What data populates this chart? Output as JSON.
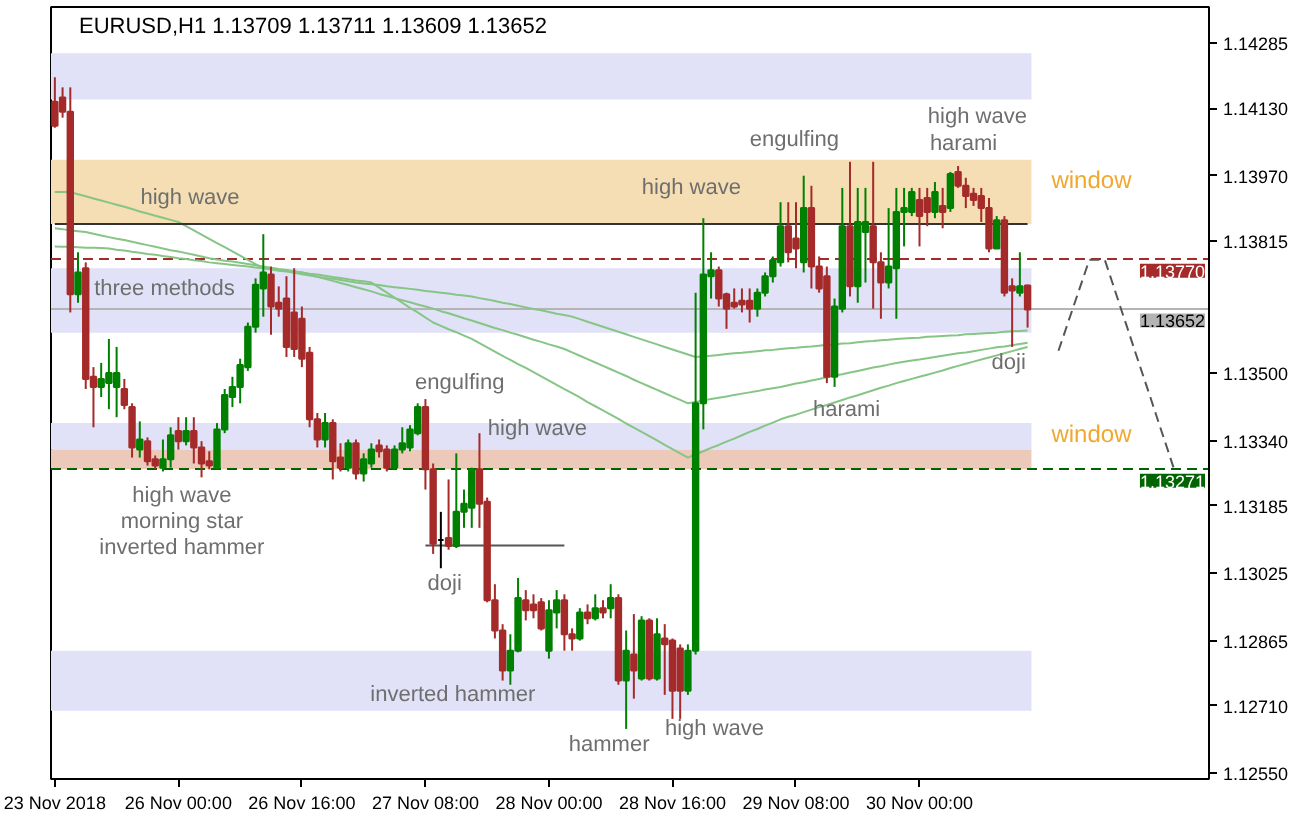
{
  "chart_data": {
    "type": "candlestick",
    "title": "EURUSD,H1 1.13709 1.13711 1.13609 1.13652",
    "categories": [
      "23 Nov 2018",
      null,
      null,
      null,
      null,
      null,
      null,
      null,
      null,
      null,
      null,
      null,
      null,
      null,
      null,
      null,
      "26 Nov 00:00",
      null,
      null,
      null,
      null,
      null,
      null,
      null,
      null,
      null,
      null,
      null,
      null,
      null,
      null,
      null,
      "26 Nov 16:00",
      null,
      null,
      null,
      null,
      null,
      null,
      null,
      null,
      null,
      null,
      null,
      null,
      null,
      null,
      null,
      "27 Nov 08:00",
      null,
      null,
      null,
      null,
      null,
      null,
      null,
      null,
      null,
      null,
      null,
      null,
      null,
      null,
      null,
      "28 Nov 00:00",
      null,
      null,
      null,
      null,
      null,
      null,
      null,
      null,
      null,
      null,
      null,
      null,
      null,
      null,
      null,
      "28 Nov 16:00",
      null,
      null,
      null,
      null,
      null,
      null,
      null,
      null,
      null,
      null,
      null,
      null,
      null,
      null,
      null,
      "29 Nov 08:00",
      null,
      null,
      null,
      null,
      null,
      null,
      null,
      null,
      null,
      null,
      null,
      null,
      null,
      null,
      null,
      "30 Nov 00:00",
      null,
      null,
      null,
      null,
      null,
      null,
      null,
      null,
      null,
      null,
      null,
      null,
      null,
      null,
      null,
      null,
      null,
      null,
      null,
      null,
      null,
      null,
      null,
      null,
      null,
      null,
      null,
      null,
      null,
      null,
      null,
      null,
      null,
      null,
      null,
      null,
      null
    ],
    "ohlc": [
      [
        1.14146,
        1.14204,
        1.14084,
        1.14089
      ],
      [
        1.14156,
        1.1418,
        1.14108,
        1.14122
      ],
      [
        1.14122,
        1.1418,
        1.13645,
        1.13688
      ],
      [
        1.13688,
        1.13788,
        1.13668,
        1.1374
      ],
      [
        1.1375,
        1.13764,
        1.13463,
        1.13487
      ],
      [
        1.13492,
        1.13515,
        1.13372,
        1.13468
      ],
      [
        1.13468,
        1.13525,
        1.13444,
        1.13487
      ],
      [
        1.13477,
        1.13582,
        1.13415,
        1.13501
      ],
      [
        1.13468,
        1.13563,
        1.13396,
        1.13501
      ],
      [
        1.13463,
        1.13487,
        1.13415,
        1.13425
      ],
      [
        1.1342,
        1.13429,
        1.133,
        1.13324
      ],
      [
        1.13319,
        1.13386,
        1.133,
        1.13343
      ],
      [
        1.13339,
        1.13348,
        1.13281,
        1.13291
      ],
      [
        1.13296,
        1.13305,
        1.13272,
        1.13281
      ],
      [
        1.13276,
        1.13343,
        1.13267,
        1.13296
      ],
      [
        1.13296,
        1.13372,
        1.13276,
        1.13353
      ],
      [
        1.13363,
        1.13396,
        1.13319,
        1.13339
      ],
      [
        1.13339,
        1.13396,
        1.13329,
        1.13363
      ],
      [
        1.13363,
        1.13396,
        1.13286,
        1.13324
      ],
      [
        1.13324,
        1.13339,
        1.13253,
        1.13286
      ],
      [
        1.13291,
        1.13315,
        1.13272,
        1.13281
      ],
      [
        1.13276,
        1.13382,
        1.13272,
        1.13367
      ],
      [
        1.13367,
        1.13463,
        1.13358,
        1.13449
      ],
      [
        1.13444,
        1.13492,
        1.1342,
        1.13468
      ],
      [
        1.13468,
        1.13535,
        1.13429,
        1.1352
      ],
      [
        1.13515,
        1.13621,
        1.13506,
        1.13611
      ],
      [
        1.13611,
        1.13726,
        1.13597,
        1.13711
      ],
      [
        1.13702,
        1.13831,
        1.13635,
        1.1374
      ],
      [
        1.13735,
        1.13754,
        1.13592,
        1.13659
      ],
      [
        1.13668,
        1.13707,
        1.13635,
        1.13654
      ],
      [
        1.13678,
        1.13731,
        1.13539,
        1.13563
      ],
      [
        1.13645,
        1.1375,
        1.13539,
        1.13558
      ],
      [
        1.1363,
        1.13659,
        1.13515,
        1.13535
      ],
      [
        1.13549,
        1.13563,
        1.13372,
        1.13391
      ],
      [
        1.13391,
        1.13406,
        1.13324,
        1.13343
      ],
      [
        1.13343,
        1.13406,
        1.13324,
        1.13382
      ],
      [
        1.13382,
        1.13391,
        1.13248,
        1.13291
      ],
      [
        1.133,
        1.13334,
        1.13267,
        1.13276
      ],
      [
        1.13276,
        1.13343,
        1.13267,
        1.13334
      ],
      [
        1.13334,
        1.13343,
        1.13248,
        1.13262
      ],
      [
        1.13262,
        1.1331,
        1.13243,
        1.13296
      ],
      [
        1.13286,
        1.13334,
        1.13276,
        1.13319
      ],
      [
        1.13329,
        1.13343,
        1.133,
        1.13315
      ],
      [
        1.13319,
        1.13329,
        1.13267,
        1.13276
      ],
      [
        1.13276,
        1.13329,
        1.13272,
        1.13319
      ],
      [
        1.13319,
        1.13372,
        1.1331,
        1.13334
      ],
      [
        1.13324,
        1.13377,
        1.13315,
        1.13367
      ],
      [
        1.13358,
        1.13429,
        1.13353,
        1.1342
      ],
      [
        1.1342,
        1.13439,
        1.13224,
        1.13272
      ],
      [
        1.13272,
        1.13286,
        1.13071,
        1.13095
      ],
      [
        1.13104,
        1.13171,
        1.13037,
        1.13104
      ],
      [
        1.13109,
        1.13248,
        1.13081,
        1.1309
      ],
      [
        1.1309,
        1.1331,
        1.13085,
        1.13171
      ],
      [
        1.13171,
        1.13224,
        1.13133,
        1.1319
      ],
      [
        1.13181,
        1.13276,
        1.13133,
        1.13272
      ],
      [
        1.13272,
        1.13358,
        1.13133,
        1.1319
      ],
      [
        1.13195,
        1.13205,
        1.12956,
        1.12961
      ],
      [
        1.12961,
        1.12999,
        1.1287,
        1.12889
      ],
      [
        1.12889,
        1.12904,
        1.1277,
        1.12794
      ],
      [
        1.12794,
        1.1288,
        1.1276,
        1.12841
      ],
      [
        1.12841,
        1.13014,
        1.12837,
        1.12966
      ],
      [
        1.12961,
        1.12985,
        1.12913,
        1.12937
      ],
      [
        1.12951,
        1.12975,
        1.12918,
        1.12937
      ],
      [
        1.12956,
        1.12966,
        1.12889,
        1.12894
      ],
      [
        1.12841,
        1.12961,
        1.12822,
        1.12937
      ],
      [
        1.12932,
        1.12985,
        1.12894,
        1.12961
      ],
      [
        1.12961,
        1.12975,
        1.12841,
        1.1288
      ],
      [
        1.1288,
        1.12894,
        1.12841,
        1.1287
      ],
      [
        1.1287,
        1.12942,
        1.12865,
        1.12932
      ],
      [
        1.12932,
        1.12951,
        1.12904,
        1.12918
      ],
      [
        1.12918,
        1.12975,
        1.12913,
        1.12942
      ],
      [
        1.12942,
        1.12961,
        1.12918,
        1.12932
      ],
      [
        1.12942,
        1.12999,
        1.12918,
        1.12966
      ],
      [
        1.12966,
        1.12975,
        1.1276,
        1.1277
      ],
      [
        1.1277,
        1.12889,
        1.12655,
        1.12841
      ],
      [
        1.12832,
        1.12928,
        1.12727,
        1.12794
      ],
      [
        1.12775,
        1.12923,
        1.1277,
        1.12913
      ],
      [
        1.12913,
        1.12918,
        1.1277,
        1.12775
      ],
      [
        1.12775,
        1.12918,
        1.1277,
        1.1288
      ],
      [
        1.1287,
        1.12904,
        1.12736,
        1.12856
      ],
      [
        1.12865,
        1.1287,
        1.12679,
        1.12746
      ],
      [
        1.12846,
        1.12856,
        1.12679,
        1.12746
      ],
      [
        1.12746,
        1.12856,
        1.12736,
        1.12841
      ],
      [
        1.12841,
        1.13692,
        1.12832,
        1.13429
      ],
      [
        1.13429,
        1.13869,
        1.13367,
        1.13735
      ],
      [
        1.13731,
        1.13788,
        1.13678,
        1.13745
      ],
      [
        1.13745,
        1.13754,
        1.13659,
        1.13678
      ],
      [
        1.13688,
        1.13692,
        1.13606,
        1.13654
      ],
      [
        1.13668,
        1.13702,
        1.13654,
        1.13659
      ],
      [
        1.13673,
        1.13702,
        1.13645,
        1.13664
      ],
      [
        1.13673,
        1.13702,
        1.13621,
        1.13654
      ],
      [
        1.13654,
        1.13702,
        1.13635,
        1.13692
      ],
      [
        1.13692,
        1.1374,
        1.13683,
        1.13731
      ],
      [
        1.13731,
        1.13778,
        1.13716,
        1.13769
      ],
      [
        1.13764,
        1.13907,
        1.13754,
        1.1385
      ],
      [
        1.1385,
        1.13907,
        1.13764,
        1.13788
      ],
      [
        1.13821,
        1.13907,
        1.1375,
        1.13797
      ],
      [
        1.13764,
        1.1397,
        1.1374,
        1.13893
      ],
      [
        1.13893,
        1.13946,
        1.13702,
        1.13754
      ],
      [
        1.13754,
        1.13778,
        1.13692,
        1.13702
      ],
      [
        1.13731,
        1.13754,
        1.13477,
        1.13492
      ],
      [
        1.13492,
        1.13678,
        1.13468,
        1.13659
      ],
      [
        1.13654,
        1.13941,
        1.13645,
        1.1385
      ],
      [
        1.1385,
        1.14003,
        1.13683,
        1.13707
      ],
      [
        1.13707,
        1.13941,
        1.13668,
        1.1386
      ],
      [
        1.13836,
        1.13941,
        1.13716,
        1.1386
      ],
      [
        1.1385,
        1.14003,
        1.13654,
        1.13764
      ],
      [
        1.13764,
        1.13788,
        1.1363,
        1.13716
      ],
      [
        1.13716,
        1.13893,
        1.13702,
        1.13754
      ],
      [
        1.1375,
        1.13941,
        1.1363,
        1.13884
      ],
      [
        1.13884,
        1.13941,
        1.13802,
        1.13893
      ],
      [
        1.13884,
        1.13941,
        1.13874,
        1.13931
      ],
      [
        1.13912,
        1.13941,
        1.13802,
        1.13874
      ],
      [
        1.13917,
        1.13941,
        1.1385,
        1.13884
      ],
      [
        1.13884,
        1.13955,
        1.13869,
        1.13931
      ],
      [
        1.13898,
        1.13941,
        1.13845,
        1.13884
      ],
      [
        1.13893,
        1.13979,
        1.13884,
        1.13974
      ],
      [
        1.13979,
        1.13993,
        1.13941,
        1.13946
      ],
      [
        1.13946,
        1.13965,
        1.13893,
        1.13922
      ],
      [
        1.13927,
        1.13941,
        1.13898,
        1.13912
      ],
      [
        1.13922,
        1.13941,
        1.1386,
        1.13893
      ],
      [
        1.13893,
        1.13917,
        1.13788,
        1.13797
      ],
      [
        1.13797,
        1.13874,
        1.13797,
        1.13864
      ],
      [
        1.13864,
        1.13874,
        1.13683,
        1.13692
      ],
      [
        1.13707,
        1.13726,
        1.13563,
        1.13697
      ],
      [
        1.13692,
        1.13788,
        1.13683,
        1.13707
      ],
      [
        1.13709,
        1.13711,
        1.13609,
        1.13652
      ],
      null,
      null,
      null,
      null,
      null,
      null,
      null,
      null,
      null,
      null,
      null,
      null,
      null,
      null,
      null,
      null,
      null,
      null,
      null,
      null,
      null,
      null,
      null
    ],
    "colors": [
      "#a52a2a",
      "#a52a2a",
      "#a52a2a",
      "#008000",
      "#a52a2a",
      "#a52a2a",
      "#008000",
      "#008000",
      "#008000",
      "#a52a2a",
      "#a52a2a",
      "#008000",
      "#a52a2a",
      "#a52a2a",
      "#008000",
      "#008000",
      "#a52a2a",
      "#008000",
      "#a52a2a",
      "#a52a2a",
      "#a52a2a",
      "#008000",
      "#008000",
      "#008000",
      "#008000",
      "#008000",
      "#008000",
      "#008000",
      "#a52a2a",
      "#a52a2a",
      "#a52a2a",
      "#a52a2a",
      "#a52a2a",
      "#a52a2a",
      "#a52a2a",
      "#008000",
      "#a52a2a",
      "#a52a2a",
      "#008000",
      "#a52a2a",
      "#008000",
      "#008000",
      "#a52a2a",
      "#a52a2a",
      "#008000",
      "#008000",
      "#008000",
      "#008000",
      "#a52a2a",
      "#a52a2a",
      "#000000",
      "#a52a2a",
      "#008000",
      "#008000",
      "#008000",
      "#a52a2a",
      "#a52a2a",
      "#a52a2a",
      "#a52a2a",
      "#008000",
      "#008000",
      "#a52a2a",
      "#a52a2a",
      "#a52a2a",
      "#008000",
      "#008000",
      "#a52a2a",
      "#a52a2a",
      "#008000",
      "#a52a2a",
      "#008000",
      "#a52a2a",
      "#008000",
      "#a52a2a",
      "#008000",
      "#a52a2a",
      "#008000",
      "#a52a2a",
      "#008000",
      "#a52a2a",
      "#a52a2a",
      "#a52a2a",
      "#008000",
      "#008000",
      "#008000",
      "#008000",
      "#a52a2a",
      "#a52a2a",
      "#a52a2a",
      "#a52a2a",
      "#a52a2a",
      "#008000",
      "#008000",
      "#008000",
      "#008000",
      "#a52a2a",
      "#a52a2a",
      "#008000",
      "#a52a2a",
      "#a52a2a",
      "#a52a2a",
      "#008000",
      "#008000",
      "#a52a2a",
      "#008000",
      "#008000",
      "#a52a2a",
      "#a52a2a",
      "#008000",
      "#008000",
      "#008000",
      "#008000",
      "#a52a2a",
      "#a52a2a",
      "#008000",
      "#a52a2a",
      "#008000",
      "#a52a2a",
      "#a52a2a",
      "#a52a2a",
      "#a52a2a",
      "#a52a2a",
      "#008000",
      "#a52a2a",
      "#a52a2a",
      "#008000",
      "#a52a2a",
      null,
      null,
      null,
      null,
      null,
      null,
      null,
      null,
      null,
      null,
      null,
      null,
      null,
      null,
      null,
      null,
      null,
      null,
      null,
      null,
      null,
      null,
      null
    ],
    "series": [
      {
        "type": "line",
        "color": "#86c586",
        "values": [
          1.13931,
          1.13931,
          1.13931,
          1.13926,
          1.13921,
          1.13916,
          1.13911,
          1.13906,
          1.13901,
          1.13896,
          1.13891,
          1.13885,
          1.1388,
          1.13875,
          1.1387,
          1.13865,
          1.1386,
          1.1385,
          1.1384,
          1.1383,
          1.1382,
          1.1381,
          1.138,
          1.1379,
          1.1378,
          1.1377,
          1.1376,
          1.1375,
          1.13747,
          1.13744,
          1.13742,
          1.13739,
          1.13736,
          1.13733,
          1.1373,
          1.13727,
          1.13725,
          1.13722,
          1.13719,
          1.13716,
          1.13714,
          1.13712,
          1.1371,
          1.13707,
          1.13705,
          1.13703,
          1.13701,
          1.13699,
          1.13696,
          1.13694,
          1.13692,
          1.1369,
          1.13687,
          1.13685,
          1.13683,
          1.13679,
          1.13676,
          1.13672,
          1.13668,
          1.13665,
          1.13661,
          1.13657,
          1.13653,
          1.1365,
          1.13646,
          1.13642,
          1.13639,
          1.13635,
          1.13629,
          1.13623,
          1.13617,
          1.13611,
          1.13605,
          1.13599,
          1.13593,
          1.13587,
          1.13581,
          1.13575,
          1.13569,
          1.13563,
          1.13557,
          1.13551,
          1.13545,
          1.13539,
          1.13541,
          1.13542,
          1.13544,
          1.13546,
          1.13548,
          1.13549,
          1.13551,
          1.13553,
          1.13555,
          1.13556,
          1.13558,
          1.1356,
          1.13561,
          1.13563,
          1.13564,
          1.13566,
          1.13568,
          1.13569,
          1.13571,
          1.13572,
          1.13574,
          1.13576,
          1.13577,
          1.13579,
          1.1358,
          1.13582,
          1.13583,
          1.13584,
          1.13585,
          1.13587,
          1.13588,
          1.13589,
          1.1359,
          1.13591,
          1.13593,
          1.13594,
          1.13595,
          1.13596,
          1.13597,
          1.13599,
          1.136,
          1.13601,
          1.13602,
          null,
          null,
          null,
          null,
          null,
          null,
          null,
          null,
          null,
          null,
          null,
          null,
          null,
          null,
          null,
          null,
          null,
          null,
          null,
          null,
          null,
          null,
          null
        ]
      },
      {
        "type": "line",
        "color": "#86c586",
        "values": [
          1.13845,
          1.13843,
          1.1384,
          1.13838,
          1.13836,
          1.13832,
          1.13828,
          1.13824,
          1.1382,
          1.13817,
          1.13813,
          1.13809,
          1.13805,
          1.13801,
          1.13797,
          1.13793,
          1.1379,
          1.13786,
          1.13782,
          1.13778,
          1.13774,
          1.13771,
          1.13768,
          1.13766,
          1.13763,
          1.1376,
          1.13757,
          1.13754,
          1.13751,
          1.13748,
          1.13746,
          1.13743,
          1.1374,
          1.13735,
          1.1373,
          1.13725,
          1.1372,
          1.13715,
          1.1371,
          1.13705,
          1.137,
          1.13695,
          1.13689,
          1.13684,
          1.13679,
          1.13674,
          1.13669,
          1.13664,
          1.13659,
          1.13654,
          1.13648,
          1.13643,
          1.13637,
          1.13631,
          1.13626,
          1.1362,
          1.13614,
          1.13608,
          1.13603,
          1.13597,
          1.13592,
          1.13586,
          1.1358,
          1.13575,
          1.13569,
          1.13564,
          1.13558,
          1.1355,
          1.13542,
          1.13534,
          1.13526,
          1.13518,
          1.1351,
          1.13502,
          1.13494,
          1.13485,
          1.13477,
          1.13469,
          1.13461,
          1.13453,
          1.13445,
          1.13437,
          1.13429,
          1.13432,
          1.13436,
          1.13439,
          1.13442,
          1.13445,
          1.13449,
          1.13452,
          1.13455,
          1.13458,
          1.13462,
          1.13465,
          1.13468,
          1.13472,
          1.13476,
          1.13479,
          1.13483,
          1.13487,
          1.13491,
          1.13495,
          1.13498,
          1.13502,
          1.13506,
          1.1351,
          1.13514,
          1.13517,
          1.13521,
          1.13525,
          1.13528,
          1.13531,
          1.13533,
          1.13536,
          1.13539,
          1.13542,
          1.13545,
          1.13548,
          1.1355,
          1.13553,
          1.13556,
          1.13559,
          1.13562,
          1.13564,
          1.13567,
          1.1357,
          1.13573,
          null,
          null,
          null,
          null,
          null,
          null,
          null,
          null,
          null,
          null,
          null,
          null,
          null,
          null,
          null,
          null,
          null,
          null,
          null,
          null,
          null,
          null,
          null
        ]
      },
      {
        "type": "line",
        "color": "#86c586",
        "values": [
          1.13802,
          1.13801,
          1.13801,
          1.138,
          1.13799,
          1.13799,
          1.13798,
          1.13797,
          1.13794,
          1.13792,
          1.13789,
          1.13787,
          1.13784,
          1.13782,
          1.13779,
          1.13777,
          1.13774,
          1.13772,
          1.13769,
          1.13767,
          1.13764,
          1.13762,
          1.1376,
          1.13758,
          1.13756,
          1.13754,
          1.13752,
          1.1375,
          1.13748,
          1.13746,
          1.13744,
          1.13742,
          1.1374,
          1.13737,
          1.13735,
          1.13732,
          1.13729,
          1.13727,
          1.13724,
          1.13721,
          1.13719,
          1.13716,
          1.13704,
          1.13692,
          1.1368,
          1.13668,
          1.13656,
          1.13645,
          1.13633,
          1.13621,
          1.13613,
          1.13605,
          1.13598,
          1.1359,
          1.13582,
          1.13572,
          1.13562,
          1.13552,
          1.13542,
          1.13532,
          1.13522,
          1.13513,
          1.13503,
          1.13493,
          1.13483,
          1.13473,
          1.13463,
          1.13453,
          1.13443,
          1.13432,
          1.13422,
          1.13412,
          1.13402,
          1.13392,
          1.13381,
          1.13371,
          1.13361,
          1.13351,
          1.13341,
          1.1333,
          1.1332,
          1.1331,
          1.133,
          1.13308,
          1.13315,
          1.13323,
          1.1333,
          1.13338,
          1.13345,
          1.13353,
          1.13361,
          1.13368,
          1.13376,
          1.13383,
          1.13391,
          1.13397,
          1.13402,
          1.13408,
          1.13414,
          1.1342,
          1.13425,
          1.13431,
          1.13437,
          1.13443,
          1.13448,
          1.13454,
          1.1346,
          1.13466,
          1.13471,
          1.13477,
          1.13482,
          1.13487,
          1.13492,
          1.13497,
          1.13502,
          1.13507,
          1.13513,
          1.13518,
          1.13523,
          1.13528,
          1.13533,
          1.13538,
          1.13543,
          1.13548,
          1.13553,
          1.13558,
          1.13563,
          null,
          null,
          null,
          null,
          null,
          null,
          null,
          null,
          null,
          null,
          null,
          null,
          null,
          null,
          null,
          null,
          null,
          null,
          null,
          null,
          null,
          null,
          null
        ]
      },
      {
        "type": "line",
        "color": "#333333",
        "values": [
          1.13855,
          1.13855,
          1.13855,
          1.13855,
          1.13855,
          1.13855,
          1.13855,
          1.13855,
          1.13855,
          1.13855,
          1.13855,
          1.13855,
          1.13855,
          1.13855,
          1.13855,
          1.13855,
          1.13855,
          1.13855,
          1.13855,
          1.13855,
          1.13855,
          1.13855,
          1.13855,
          1.13855,
          1.13855,
          1.13855,
          1.13855,
          1.13855,
          1.13855,
          1.13855,
          1.13855,
          1.13855,
          1.13855,
          1.13855,
          1.13855,
          1.13855,
          1.13855,
          1.13855,
          1.13855,
          1.13855,
          1.13855,
          1.13855,
          1.13855,
          1.13855,
          1.13855,
          1.13855,
          1.13855,
          1.13855,
          1.13855,
          1.13855,
          1.13855,
          1.13855,
          1.13855,
          1.13855,
          1.13855,
          1.13855,
          1.13855,
          1.13855,
          1.13855,
          1.13855,
          1.13855,
          1.13855,
          1.13855,
          1.13855,
          1.13855,
          1.13855,
          1.13855,
          1.13855,
          1.13855,
          1.13855,
          1.13855,
          1.13855,
          1.13855,
          1.13855,
          1.13855,
          1.13855,
          1.13855,
          1.13855,
          1.13855,
          1.13855,
          1.13855,
          1.13855,
          1.13855,
          1.13855,
          1.13855,
          1.13855,
          1.13855,
          1.13855,
          1.13855,
          1.13855,
          1.13855,
          1.13855,
          1.13855,
          1.13855,
          1.13855,
          1.13855,
          1.13855,
          1.13855,
          1.13855,
          1.13855,
          1.13855,
          1.13855,
          1.13855,
          1.13855,
          1.13855,
          1.13855,
          1.13855,
          1.13855,
          1.13855,
          1.13855,
          1.13855,
          1.13855,
          1.13855,
          1.13855,
          1.13855,
          1.13855,
          1.13855,
          1.13855,
          1.13855,
          1.13855,
          1.13855,
          1.13855,
          1.13855,
          1.13855,
          1.13855,
          1.13855,
          1.13855,
          null,
          null,
          null,
          null,
          null,
          null,
          null,
          null,
          null,
          null,
          null,
          null,
          null,
          null,
          null,
          null,
          null,
          null,
          null,
          null,
          null,
          null,
          null
        ]
      },
      {
        "type": "line",
        "color": "#555555",
        "values": [
          null,
          null,
          null,
          null,
          null,
          null,
          null,
          null,
          null,
          null,
          null,
          null,
          null,
          null,
          null,
          null,
          null,
          null,
          null,
          null,
          null,
          null,
          null,
          null,
          null,
          null,
          null,
          null,
          null,
          null,
          null,
          null,
          null,
          null,
          null,
          null,
          null,
          null,
          null,
          null,
          null,
          null,
          null,
          null,
          null,
          null,
          null,
          null,
          1.13091,
          1.13091,
          1.13091,
          1.13091,
          1.13091,
          1.13091,
          1.13091,
          1.13091,
          1.13091,
          1.13091,
          1.13091,
          1.13091,
          1.13091,
          1.13091,
          1.13091,
          1.13091,
          1.13091,
          1.13091,
          1.13091,
          null,
          null,
          null,
          null,
          null,
          null,
          null,
          null,
          null,
          null,
          null,
          null,
          null,
          null,
          null,
          null,
          null,
          null,
          null,
          null,
          null,
          null,
          null,
          null,
          null,
          null,
          null,
          null,
          null,
          null,
          null,
          null,
          null,
          null,
          null,
          null,
          null,
          null,
          null,
          null,
          null,
          null,
          null,
          null,
          null,
          null,
          null,
          null,
          null,
          null,
          null,
          null,
          null,
          null,
          null,
          null,
          null,
          null,
          null,
          null,
          null,
          null,
          null,
          null,
          null,
          null,
          null,
          null,
          null,
          null,
          null,
          null,
          null,
          null,
          null,
          null,
          null,
          null,
          null,
          null,
          null,
          null,
          null
        ]
      },
      {
        "type": "line",
        "color": "#555555",
        "line_style": "dashed",
        "values": [
          null,
          null,
          null,
          null,
          null,
          null,
          null,
          null,
          null,
          null,
          null,
          null,
          null,
          null,
          null,
          null,
          null,
          null,
          null,
          null,
          null,
          null,
          null,
          null,
          null,
          null,
          null,
          null,
          null,
          null,
          null,
          null,
          null,
          null,
          null,
          null,
          null,
          null,
          null,
          null,
          null,
          null,
          null,
          null,
          null,
          null,
          null,
          null,
          null,
          null,
          null,
          null,
          null,
          null,
          null,
          null,
          null,
          null,
          null,
          null,
          null,
          null,
          null,
          null,
          null,
          null,
          null,
          null,
          null,
          null,
          null,
          null,
          null,
          null,
          null,
          null,
          null,
          null,
          null,
          null,
          null,
          null,
          null,
          null,
          null,
          null,
          null,
          null,
          null,
          null,
          null,
          null,
          null,
          null,
          null,
          null,
          null,
          null,
          null,
          null,
          null,
          null,
          null,
          null,
          null,
          null,
          null,
          null,
          null,
          null,
          null,
          null,
          null,
          null,
          null,
          null,
          null,
          null,
          null,
          null,
          null,
          null,
          null,
          null,
          null,
          null,
          null,
          null,
          null,
          null,
          1.13554,
          1.13608,
          1.13662,
          1.13716,
          1.1377,
          1.1377,
          1.1377,
          1.13715,
          1.13659,
          1.13604,
          1.13548,
          1.13493,
          1.13438,
          1.13382,
          1.13327,
          1.13271,
          null,
          null,
          null,
          null
        ]
      }
    ],
    "bands": [
      {
        "axis": "y",
        "from": 1.14151,
        "to": 1.14261,
        "color": "#e1e1f7"
      },
      {
        "axis": "y",
        "from": 1.13855,
        "to": 1.14008,
        "color": "#f5deb3",
        "label": "window"
      },
      {
        "axis": "y",
        "from": 1.13597,
        "to": 1.1375,
        "color": "#e1e1f7"
      },
      {
        "axis": "y",
        "from": 1.13319,
        "to": 1.13382,
        "color": "#e1e1f7"
      },
      {
        "axis": "y",
        "from": 1.13272,
        "to": 1.13319,
        "color": "#ecc9b9",
        "label": "window"
      },
      {
        "axis": "y",
        "from": 1.12698,
        "to": 1.12841,
        "color": "#e1e1f7"
      }
    ],
    "ref_lines": [
      {
        "axis": "y",
        "value": 1.1377,
        "label": "1.13770",
        "color": "#a52a2a",
        "line_style": "dashed"
      },
      {
        "axis": "y",
        "value": 1.13652,
        "label": "1.13652",
        "color": "#b4b4b4"
      },
      {
        "axis": "y",
        "value": 1.13271,
        "label": "1.13271",
        "color": "#006400",
        "line_style": "dashed"
      }
    ],
    "annotations": [
      "high wave",
      "three methods",
      "high wave",
      "morning star",
      "inverted hammer",
      "engulfing",
      "high wave",
      "doji",
      "inverted hammer",
      "hammer",
      "high wave",
      "high wave",
      "engulfing",
      "high wave",
      "harami",
      "harami",
      "doji"
    ],
    "ylim": [
      1.12536,
      1.14371
    ],
    "yticks": [
      1.14285,
      {
        "value": 1.1413,
        "label": "1.14130"
      },
      {
        "value": 1.1397,
        "label": "1.13970"
      },
      1.13815,
      {
        "value": 1.135,
        "label": "1.13500"
      },
      {
        "value": 1.1334,
        "label": "1.13340"
      },
      1.13185,
      1.13025,
      1.12865,
      {
        "value": 1.1271,
        "label": "1.12710"
      },
      {
        "value": 1.1255,
        "label": "1.12550"
      }
    ]
  }
}
